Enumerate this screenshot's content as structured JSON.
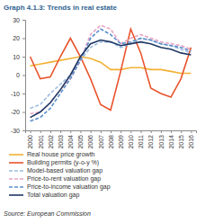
{
  "chart_data": {
    "type": "line",
    "title": "Graph 4.1.3: Trends in real estate",
    "source": "Source: European Commission",
    "categories": [
      "2000",
      "2001",
      "2002",
      "2003",
      "2004",
      "2005",
      "2006",
      "2007",
      "2008",
      "2009",
      "2010",
      "2011",
      "2012",
      "2013",
      "2014",
      "2015",
      "2016"
    ],
    "ylim": [
      -30,
      30
    ],
    "yticks": [
      -30,
      -20,
      -10,
      0,
      10,
      20,
      30
    ],
    "grid": false,
    "legend": "bottom",
    "series": [
      {
        "name": "Real house price growth",
        "color": "#f2b134",
        "line_style": "solid",
        "values": [
          5,
          6,
          7,
          8,
          9,
          10,
          9,
          7,
          3,
          3,
          4,
          4,
          3,
          3,
          2,
          1,
          1
        ]
      },
      {
        "name": "Building permits (y-o-y %)",
        "color": "#e8542c",
        "line_style": "solid",
        "values": [
          10,
          -2,
          -1,
          10,
          20,
          10,
          -2,
          -16,
          -19,
          2,
          25,
          12,
          -7,
          -10,
          -12,
          -2,
          15
        ]
      },
      {
        "name": "Model-based valuation gap",
        "color": "#9dbde0",
        "line_style": "dashed",
        "values": [
          -18,
          -16,
          -10,
          -5,
          0,
          8,
          15,
          18,
          18,
          15,
          17,
          20,
          19,
          17,
          16,
          14,
          12
        ]
      },
      {
        "name": "Price-to-rent valuation gap",
        "color": "#e9a3c4",
        "line_style": "dashed",
        "values": [
          -21,
          -20,
          -15,
          -8,
          -2,
          8,
          22,
          27,
          25,
          17,
          20,
          22,
          20,
          18,
          17,
          16,
          14
        ]
      },
      {
        "name": "Price-to-income valuation gap",
        "color": "#5b8fca",
        "line_style": "dashed",
        "values": [
          -25,
          -23,
          -18,
          -10,
          -2,
          8,
          20,
          25,
          22,
          17,
          18,
          20,
          19,
          17,
          16,
          15,
          13
        ]
      },
      {
        "name": "Total valuation gap",
        "color": "#1f3864",
        "line_style": "solid",
        "values": [
          -23,
          -20,
          -15,
          -8,
          0,
          10,
          17,
          19,
          18,
          16,
          17,
          18,
          17,
          15,
          14,
          12,
          11
        ]
      }
    ]
  }
}
